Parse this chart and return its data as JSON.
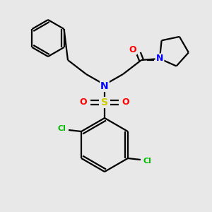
{
  "background_color": "#e8e8e8",
  "bond_color": "#000000",
  "atom_colors": {
    "N": "#0000ff",
    "O": "#ff0000",
    "S": "#cccc00",
    "Cl": "#00bb00",
    "C": "#000000"
  },
  "figsize": [
    3.0,
    3.0
  ],
  "dpi": 100
}
